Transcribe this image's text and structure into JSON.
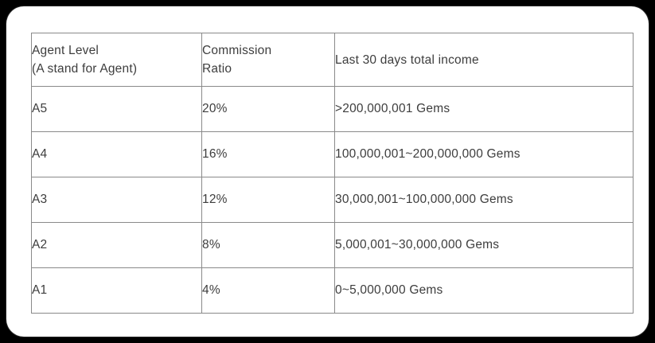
{
  "card": {
    "type": "agent-commission-info"
  },
  "table": {
    "headers": [
      "Agent Level\n(A stand for Agent)",
      "Commission\nRatio",
      "Last 30 days total income"
    ],
    "rows": [
      {
        "level": "A5",
        "ratio": "20%",
        "income": ">200,000,001 Gems"
      },
      {
        "level": "A4",
        "ratio": "16%",
        "income": "100,000,001~200,000,000 Gems"
      },
      {
        "level": "A3",
        "ratio": "12%",
        "income": "30,000,001~100,000,000 Gems"
      },
      {
        "level": "A2",
        "ratio": "8%",
        "income": "5,000,001~30,000,000 Gems"
      },
      {
        "level": "A1",
        "ratio": "4%",
        "income": "0~5,000,000 Gems"
      }
    ]
  },
  "colors": {
    "page_background": "#000000",
    "card_background": "#ffffff",
    "table_border": "#8a8a8a",
    "text": "#3d3d3d"
  }
}
